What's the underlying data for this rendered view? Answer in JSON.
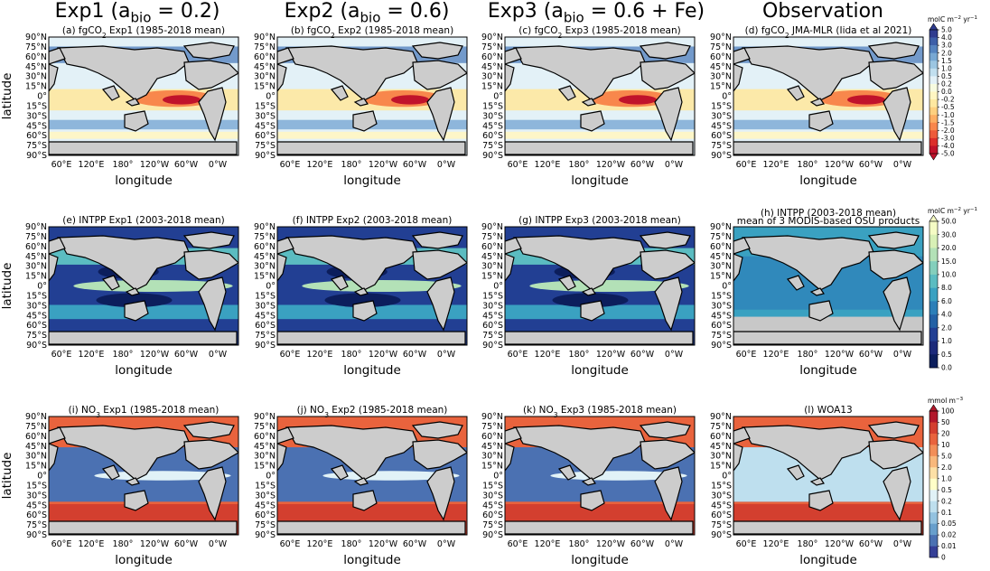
{
  "figure": {
    "column_titles": [
      {
        "base": "Exp1 (a",
        "sub": "bio",
        "rest": " = 0.2)"
      },
      {
        "base": "Exp2 (a",
        "sub": "bio",
        "rest": " = 0.6)"
      },
      {
        "base": "Exp3 (a",
        "sub": "bio",
        "rest": " = 0.6 + Fe)"
      },
      {
        "base": "Observation",
        "sub": "",
        "rest": ""
      }
    ],
    "ylabel": "latitude",
    "xlabel": "longitude",
    "lat_ticks": [
      "90°N",
      "75°N",
      "60°N",
      "45°N",
      "30°N",
      "15°N",
      "0°",
      "15°S",
      "30°S",
      "45°S",
      "60°S",
      "75°S",
      "90°S"
    ],
    "lon_ticks": [
      "60°E",
      "120°E",
      "180°",
      "120°W",
      "60°W",
      "0°W"
    ]
  },
  "chart_data": [
    {
      "type": "heatmap",
      "row": 0,
      "col": 0,
      "variable": "fgCO2",
      "title_pre": "(a) fgCO",
      "title_sub": "2",
      "title_post": " Exp1 (1985-2018 mean)"
    },
    {
      "type": "heatmap",
      "row": 0,
      "col": 1,
      "variable": "fgCO2",
      "title_pre": "(b) fgCO",
      "title_sub": "2",
      "title_post": " Exp2 (1985-2018 mean)"
    },
    {
      "type": "heatmap",
      "row": 0,
      "col": 2,
      "variable": "fgCO2",
      "title_pre": "(c) fgCO",
      "title_sub": "2",
      "title_post": " Exp3 (1985-2018 mean)"
    },
    {
      "type": "heatmap",
      "row": 0,
      "col": 3,
      "variable": "fgCO2",
      "title_pre": "(d) fgCO",
      "title_sub": "2",
      "title_post": " JMA-MLR (Iida et al 2021)"
    },
    {
      "type": "heatmap",
      "row": 1,
      "col": 0,
      "variable": "INTPP",
      "title_pre": "(e) INTPP Exp1 (2003-2018 mean)",
      "title_sub": "",
      "title_post": ""
    },
    {
      "type": "heatmap",
      "row": 1,
      "col": 1,
      "variable": "INTPP",
      "title_pre": "(f) INTPP Exp2 (2003-2018 mean)",
      "title_sub": "",
      "title_post": ""
    },
    {
      "type": "heatmap",
      "row": 1,
      "col": 2,
      "variable": "INTPP",
      "title_pre": "(g) INTPP Exp3 (2003-2018 mean)",
      "title_sub": "",
      "title_post": ""
    },
    {
      "type": "heatmap",
      "row": 1,
      "col": 3,
      "variable": "INTPP",
      "title_pre": "(h) INTPP (2003-2018 mean)",
      "title_sub": "",
      "title_post": "",
      "title_line2": "mean of 3 MODIS-based OSU products"
    },
    {
      "type": "heatmap",
      "row": 2,
      "col": 0,
      "variable": "NO3",
      "title_pre": "(i) NO",
      "title_sub": "3",
      "title_post": " Exp1 (1985-2018 mean)"
    },
    {
      "type": "heatmap",
      "row": 2,
      "col": 1,
      "variable": "NO3",
      "title_pre": "(j) NO",
      "title_sub": "3",
      "title_post": " Exp2 (1985-2018 mean)"
    },
    {
      "type": "heatmap",
      "row": 2,
      "col": 2,
      "variable": "NO3",
      "title_pre": "(k) NO",
      "title_sub": "3",
      "title_post": " Exp3 (1985-2018 mean)"
    },
    {
      "type": "heatmap",
      "row": 2,
      "col": 3,
      "variable": "NO3",
      "title_pre": "(l) WOA13",
      "title_sub": "",
      "title_post": ""
    }
  ],
  "colorbars": [
    {
      "row": 0,
      "unit_pre": "molC m",
      "unit_sup1": "−2",
      "unit_mid": " yr",
      "unit_sup2": "−1",
      "ticks": [
        "5.0",
        "4.0",
        "3.0",
        "2.0",
        "1.5",
        "1.0",
        "0.5",
        "0.2",
        "0.0",
        "-0.2",
        "-0.5",
        "-1.0",
        "-1.5",
        "-2.0",
        "-3.0",
        "-4.0",
        "-5.0"
      ],
      "colors": [
        "#2f3c8f",
        "#3d5fa8",
        "#5684bf",
        "#78a8d3",
        "#9cc6e2",
        "#c1dfef",
        "#e3f1f7",
        "#f7fbe0",
        "#fff6c2",
        "#fee8a0",
        "#fdd07f",
        "#fcae63",
        "#f8874c",
        "#ee5b3a",
        "#dc2e2b",
        "#c0132b"
      ]
    },
    {
      "row": 1,
      "unit_pre": "molC m",
      "unit_sup1": "−2",
      "unit_mid": " yr",
      "unit_sup2": "−1",
      "ticks": [
        "50.0",
        "30.0",
        "20.0",
        "15.0",
        "10.0",
        "8.0",
        "6.0",
        "4.0",
        "2.0",
        "1.0",
        "0.5",
        "0.0"
      ],
      "colors": [
        "#f5fbc4",
        "#d8f0b6",
        "#b3e1b7",
        "#84cfbc",
        "#5bbcc1",
        "#3aa1c1",
        "#2c7fb8",
        "#2361a5",
        "#223f93",
        "#1c2a7a",
        "#0c1e5c"
      ]
    },
    {
      "row": 2,
      "unit_pre": "mmol m",
      "unit_sup1": "−3",
      "unit_mid": "",
      "unit_sup2": "",
      "ticks": [
        "100",
        "50",
        "20",
        "10",
        "5.0",
        "2.0",
        "1.0",
        "0.5",
        "0.2",
        "0.1",
        "0.05",
        "0.02",
        "0.01",
        "0"
      ],
      "colors": [
        "#b2182b",
        "#d33f2f",
        "#e9633d",
        "#f28e58",
        "#f8b87c",
        "#fce0a6",
        "#ffffc8",
        "#e1f2f7",
        "#bedfee",
        "#93c2e0",
        "#689fcc",
        "#4b71b2",
        "#353f96"
      ]
    }
  ]
}
